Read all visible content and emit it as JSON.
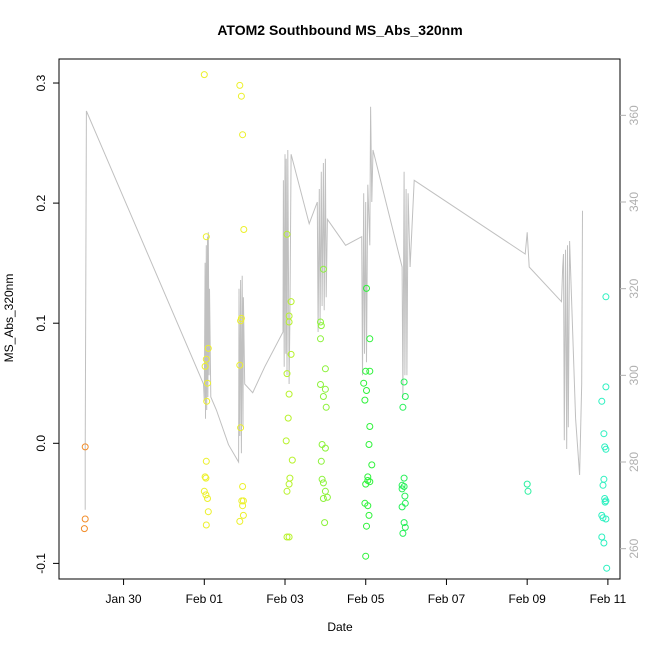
{
  "chart_data": {
    "type": "scatter",
    "title": "ATOM2 Southbound MS_Abs_320nm",
    "xlabel": "Date",
    "ylabel": "MS_Abs_320nm",
    "xlim": [
      -3.6,
      10.3
    ],
    "ylim": [
      -0.113,
      0.32
    ],
    "x_unit": "days since Feb 01",
    "x_ticks": [
      {
        "value": -2,
        "label": "Jan 30"
      },
      {
        "value": 0,
        "label": "Feb 01"
      },
      {
        "value": 2,
        "label": "Feb 03"
      },
      {
        "value": 4,
        "label": "Feb 05"
      },
      {
        "value": 6,
        "label": "Feb 07"
      },
      {
        "value": 8,
        "label": "Feb 09"
      },
      {
        "value": 10,
        "label": "Feb 11"
      }
    ],
    "y_ticks": [
      {
        "value": -0.1,
        "label": "-0.1"
      },
      {
        "value": 0.0,
        "label": "0.0"
      },
      {
        "value": 0.1,
        "label": "0.1"
      },
      {
        "value": 0.2,
        "label": "0.2"
      },
      {
        "value": 0.3,
        "label": "0.3"
      }
    ],
    "secondary_axis": {
      "description": "Line trace (gray)",
      "range": [
        253,
        373
      ],
      "ticks": [
        {
          "value": 260,
          "label": "260"
        },
        {
          "value": 280,
          "label": "280"
        },
        {
          "value": 300,
          "label": "300"
        },
        {
          "value": 320,
          "label": "320"
        },
        {
          "value": 340,
          "label": "340"
        },
        {
          "value": 360,
          "label": "360"
        }
      ]
    },
    "series": [
      {
        "name": "MS_Abs_320nm",
        "kind": "points",
        "points": [
          [
            -2.95,
            -0.003,
            "#f28c28"
          ],
          [
            -2.95,
            -0.063,
            "#f28c28"
          ],
          [
            -2.97,
            -0.071,
            "#f28c28"
          ],
          [
            0.0,
            0.307,
            "#ecf02c"
          ],
          [
            0.05,
            0.172,
            "#ecf02c"
          ],
          [
            0.1,
            0.079,
            "#ecf02c"
          ],
          [
            0.05,
            0.07,
            "#ecf02c"
          ],
          [
            0.02,
            0.064,
            "#ecf02c"
          ],
          [
            0.08,
            0.05,
            "#ecf02c"
          ],
          [
            0.06,
            0.035,
            "#ecf02c"
          ],
          [
            0.05,
            -0.015,
            "#ecf02c"
          ],
          [
            0.02,
            -0.028,
            "#ecf02c"
          ],
          [
            0.04,
            -0.029,
            "#ecf02c"
          ],
          [
            0.0,
            -0.04,
            "#ecf02c"
          ],
          [
            0.04,
            -0.043,
            "#ecf02c"
          ],
          [
            0.08,
            -0.046,
            "#ecf02c"
          ],
          [
            0.1,
            -0.057,
            "#ecf02c"
          ],
          [
            0.05,
            -0.068,
            "#ecf02c"
          ],
          [
            0.88,
            0.298,
            "#ecf02c"
          ],
          [
            0.92,
            0.289,
            "#ecf02c"
          ],
          [
            0.95,
            0.257,
            "#ecf02c"
          ],
          [
            0.98,
            0.178,
            "#ecf02c"
          ],
          [
            0.92,
            0.104,
            "#ecf02c"
          ],
          [
            0.9,
            0.102,
            "#ecf02c"
          ],
          [
            0.88,
            0.065,
            "#ecf02c"
          ],
          [
            0.9,
            0.013,
            "#ecf02c"
          ],
          [
            0.95,
            -0.036,
            "#ecf02c"
          ],
          [
            0.93,
            -0.048,
            "#ecf02c"
          ],
          [
            0.97,
            -0.048,
            "#ecf02c"
          ],
          [
            0.95,
            -0.052,
            "#ecf02c"
          ],
          [
            0.97,
            -0.06,
            "#ecf02c"
          ],
          [
            0.88,
            -0.065,
            "#ecf02c"
          ],
          [
            2.05,
            0.174,
            "#b8f22c"
          ],
          [
            2.15,
            0.118,
            "#b8f22c"
          ],
          [
            2.1,
            0.106,
            "#b8f22c"
          ],
          [
            2.1,
            0.101,
            "#b8f22c"
          ],
          [
            2.15,
            0.074,
            "#b8f22c"
          ],
          [
            2.05,
            0.058,
            "#b8f22c"
          ],
          [
            2.1,
            0.041,
            "#b8f22c"
          ],
          [
            2.08,
            0.021,
            "#b8f22c"
          ],
          [
            2.03,
            0.002,
            "#b8f22c"
          ],
          [
            2.18,
            -0.014,
            "#b8f22c"
          ],
          [
            2.12,
            -0.029,
            "#b8f22c"
          ],
          [
            2.1,
            -0.034,
            "#b8f22c"
          ],
          [
            2.05,
            -0.04,
            "#b8f22c"
          ],
          [
            2.05,
            -0.078,
            "#b8f22c"
          ],
          [
            2.1,
            -0.078,
            "#b8f22c"
          ],
          [
            2.95,
            0.145,
            "#8cf23a"
          ],
          [
            2.88,
            0.101,
            "#8cf23a"
          ],
          [
            2.9,
            0.098,
            "#8cf23a"
          ],
          [
            2.88,
            0.087,
            "#8cf23a"
          ],
          [
            3.0,
            0.062,
            "#8cf23a"
          ],
          [
            2.88,
            0.049,
            "#8cf23a"
          ],
          [
            3.0,
            0.045,
            "#8cf23a"
          ],
          [
            2.95,
            0.039,
            "#8cf23a"
          ],
          [
            3.02,
            0.03,
            "#8cf23a"
          ],
          [
            2.92,
            -0.001,
            "#8cf23a"
          ],
          [
            3.0,
            -0.004,
            "#8cf23a"
          ],
          [
            2.9,
            -0.015,
            "#8cf23a"
          ],
          [
            2.95,
            -0.033,
            "#8cf23a"
          ],
          [
            2.92,
            -0.03,
            "#8cf23a"
          ],
          [
            3.0,
            -0.04,
            "#8cf23a"
          ],
          [
            3.05,
            -0.045,
            "#8cf23a"
          ],
          [
            2.95,
            -0.046,
            "#8cf23a"
          ],
          [
            2.98,
            -0.066,
            "#8cf23a"
          ],
          [
            4.02,
            0.129,
            "#2ef23a"
          ],
          [
            4.1,
            0.087,
            "#2ef23a"
          ],
          [
            4.0,
            0.06,
            "#2ef23a"
          ],
          [
            4.1,
            0.06,
            "#2ef23a"
          ],
          [
            3.95,
            0.05,
            "#2ef23a"
          ],
          [
            4.02,
            0.044,
            "#2ef23a"
          ],
          [
            3.98,
            0.036,
            "#2ef23a"
          ],
          [
            4.1,
            0.014,
            "#2ef23a"
          ],
          [
            4.08,
            -0.001,
            "#2ef23a"
          ],
          [
            4.15,
            -0.018,
            "#2ef23a"
          ],
          [
            4.05,
            -0.028,
            "#2ef23a"
          ],
          [
            4.05,
            -0.031,
            "#2ef23a"
          ],
          [
            4.1,
            -0.032,
            "#2ef23a"
          ],
          [
            4.0,
            -0.034,
            "#2ef23a"
          ],
          [
            3.98,
            -0.05,
            "#2ef23a"
          ],
          [
            4.05,
            -0.052,
            "#2ef23a"
          ],
          [
            4.08,
            -0.06,
            "#2ef23a"
          ],
          [
            4.02,
            -0.069,
            "#2ef23a"
          ],
          [
            4.0,
            -0.094,
            "#2ef23a"
          ],
          [
            4.95,
            0.051,
            "#28f05a"
          ],
          [
            4.98,
            0.039,
            "#28f05a"
          ],
          [
            4.92,
            0.03,
            "#28f05a"
          ],
          [
            4.95,
            -0.029,
            "#28f05a"
          ],
          [
            4.9,
            -0.035,
            "#28f05a"
          ],
          [
            4.95,
            -0.036,
            "#28f05a"
          ],
          [
            4.9,
            -0.038,
            "#28f05a"
          ],
          [
            4.97,
            -0.044,
            "#28f05a"
          ],
          [
            4.98,
            -0.05,
            "#28f05a"
          ],
          [
            4.9,
            -0.053,
            "#28f05a"
          ],
          [
            4.95,
            -0.066,
            "#28f05a"
          ],
          [
            4.98,
            -0.07,
            "#28f05a"
          ],
          [
            4.92,
            -0.075,
            "#28f05a"
          ],
          [
            8.0,
            -0.034,
            "#2af0a0"
          ],
          [
            8.02,
            -0.04,
            "#2af0a0"
          ],
          [
            9.95,
            0.122,
            "#2cf0c0"
          ],
          [
            9.95,
            0.047,
            "#2cf0c0"
          ],
          [
            9.85,
            0.035,
            "#2cf0c0"
          ],
          [
            9.9,
            0.008,
            "#2cf0c0"
          ],
          [
            9.92,
            -0.003,
            "#2cf0c0"
          ],
          [
            9.95,
            -0.005,
            "#2cf0c0"
          ],
          [
            9.9,
            -0.03,
            "#2cf0c0"
          ],
          [
            9.88,
            -0.035,
            "#2cf0c0"
          ],
          [
            9.92,
            -0.046,
            "#2cf0c0"
          ],
          [
            9.95,
            -0.048,
            "#2cf0c0"
          ],
          [
            9.93,
            -0.049,
            "#2cf0c0"
          ],
          [
            9.85,
            -0.06,
            "#2cf0c0"
          ],
          [
            9.88,
            -0.062,
            "#2cf0c0"
          ],
          [
            9.95,
            -0.063,
            "#2cf0c0"
          ],
          [
            9.85,
            -0.078,
            "#2cf0c0"
          ],
          [
            9.9,
            -0.083,
            "#2cf0c0"
          ],
          [
            9.97,
            -0.104,
            "#2cf0c0"
          ]
        ]
      },
      {
        "name": "Secondary line trace",
        "kind": "line",
        "color": "#c0c0c0",
        "axis": "secondary",
        "points": [
          [
            -2.95,
            269
          ],
          [
            -2.95,
            282
          ],
          [
            -2.92,
            361
          ],
          [
            -0.02,
            298
          ],
          [
            0.0,
            294
          ],
          [
            0.02,
            326
          ],
          [
            0.03,
            290
          ],
          [
            0.05,
            330
          ],
          [
            0.06,
            292
          ],
          [
            0.08,
            332
          ],
          [
            0.09,
            295
          ],
          [
            0.1,
            333
          ],
          [
            0.12,
            300
          ],
          [
            0.13,
            320
          ],
          [
            0.16,
            295
          ],
          [
            0.3,
            292
          ],
          [
            0.6,
            284
          ],
          [
            0.85,
            280
          ],
          [
            0.86,
            320
          ],
          [
            0.88,
            286
          ],
          [
            0.9,
            322
          ],
          [
            0.92,
            282
          ],
          [
            0.94,
            323
          ],
          [
            0.96,
            288
          ],
          [
            0.97,
            318
          ],
          [
            1.0,
            298
          ],
          [
            1.2,
            296
          ],
          [
            1.5,
            302
          ],
          [
            1.95,
            310
          ],
          [
            1.96,
            345
          ],
          [
            1.98,
            302
          ],
          [
            2.0,
            351
          ],
          [
            2.02,
            305
          ],
          [
            2.03,
            350
          ],
          [
            2.05,
            300
          ],
          [
            2.07,
            352
          ],
          [
            2.1,
            298
          ],
          [
            2.12,
            313
          ],
          [
            2.15,
            351
          ],
          [
            2.6,
            335
          ],
          [
            2.8,
            340
          ],
          [
            2.82,
            310
          ],
          [
            2.85,
            343
          ],
          [
            2.87,
            312
          ],
          [
            2.9,
            347
          ],
          [
            2.92,
            316
          ],
          [
            2.95,
            349
          ],
          [
            2.97,
            315
          ],
          [
            3.0,
            350
          ],
          [
            3.02,
            318
          ],
          [
            3.05,
            336
          ],
          [
            3.5,
            330
          ],
          [
            3.9,
            332
          ],
          [
            3.92,
            300
          ],
          [
            3.95,
            342
          ],
          [
            3.97,
            305
          ],
          [
            4.0,
            340
          ],
          [
            4.02,
            303
          ],
          [
            4.05,
            344
          ],
          [
            4.1,
            330
          ],
          [
            4.12,
            362
          ],
          [
            4.15,
            340
          ],
          [
            4.18,
            352
          ],
          [
            4.9,
            325
          ],
          [
            4.92,
            295
          ],
          [
            4.95,
            347
          ],
          [
            4.97,
            300
          ],
          [
            5.0,
            343
          ],
          [
            5.02,
            300
          ],
          [
            5.05,
            342
          ],
          [
            5.1,
            325
          ],
          [
            5.2,
            345
          ],
          [
            7.95,
            328
          ],
          [
            8.0,
            333
          ],
          [
            8.05,
            325
          ],
          [
            8.85,
            317
          ],
          [
            8.88,
            325
          ],
          [
            8.9,
            328
          ],
          [
            8.92,
            285
          ],
          [
            8.95,
            329
          ],
          [
            8.98,
            283
          ],
          [
            9.0,
            330
          ],
          [
            9.02,
            288
          ],
          [
            9.05,
            331
          ],
          [
            9.2,
            290
          ],
          [
            9.3,
            277
          ],
          [
            9.35,
            298
          ],
          [
            9.37,
            338
          ]
        ]
      }
    ]
  }
}
